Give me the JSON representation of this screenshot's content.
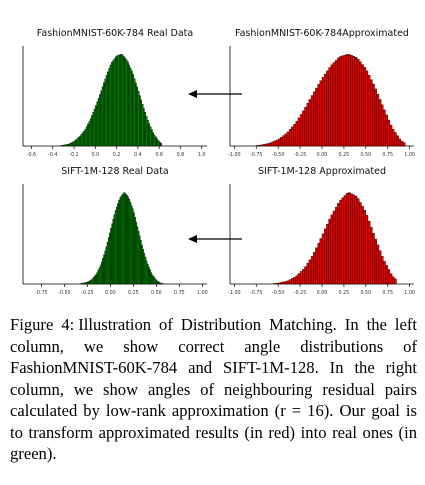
{
  "chart_data": [
    {
      "type": "bar",
      "title": "FashionMNIST-60K-784 Real Data",
      "color": "#008000",
      "x_ticks": [
        -0.6,
        -0.4,
        -0.2,
        0.0,
        0.2,
        0.4,
        0.6,
        0.8,
        1.0
      ],
      "x_tick_labels": [
        "-0.6",
        "-0.4",
        "-0.2",
        "0.0",
        "0.2",
        "0.4",
        "0.6",
        "0.8",
        "1.0"
      ],
      "xlim": [
        -0.68,
        1.05
      ],
      "x": [
        -0.3,
        -0.25,
        -0.2,
        -0.15,
        -0.1,
        -0.05,
        0.0,
        0.05,
        0.1,
        0.15,
        0.2,
        0.25,
        0.3,
        0.35,
        0.4,
        0.45,
        0.5,
        0.55,
        0.6
      ],
      "values": [
        0.01,
        0.02,
        0.05,
        0.1,
        0.17,
        0.28,
        0.42,
        0.58,
        0.75,
        0.9,
        0.98,
        1.0,
        0.93,
        0.8,
        0.62,
        0.43,
        0.26,
        0.13,
        0.05
      ]
    },
    {
      "type": "bar",
      "title": "FashionMNIST-60K-784Approximated",
      "color": "#e00000",
      "x_ticks": [
        -1.0,
        -0.75,
        -0.5,
        -0.25,
        0.0,
        0.25,
        0.5,
        0.75,
        1.0
      ],
      "x_tick_labels": [
        "-1.00",
        "-0.75",
        "-0.50",
        "-0.25",
        "0.00",
        "0.25",
        "0.50",
        "0.75",
        "1.00"
      ],
      "xlim": [
        -1.05,
        1.05
      ],
      "x": [
        -0.7,
        -0.6,
        -0.5,
        -0.4,
        -0.3,
        -0.2,
        -0.1,
        0.0,
        0.1,
        0.2,
        0.3,
        0.4,
        0.5,
        0.6,
        0.7,
        0.8,
        0.9
      ],
      "values": [
        0.01,
        0.03,
        0.07,
        0.14,
        0.25,
        0.4,
        0.57,
        0.73,
        0.87,
        0.97,
        1.0,
        0.96,
        0.84,
        0.65,
        0.42,
        0.2,
        0.06
      ]
    },
    {
      "type": "bar",
      "title": "SIFT-1M-128 Real Data",
      "color": "#008000",
      "x_ticks": [
        -0.75,
        -0.5,
        -0.25,
        0.0,
        0.25,
        0.5,
        0.75,
        1.0
      ],
      "x_tick_labels": [
        "-0.75",
        "-0.50",
        "-0.25",
        "0.00",
        "0.25",
        "0.50",
        "0.75",
        "1.00"
      ],
      "xlim": [
        -0.95,
        1.05
      ],
      "x": [
        -0.3,
        -0.25,
        -0.2,
        -0.15,
        -0.1,
        -0.05,
        0.0,
        0.05,
        0.1,
        0.15,
        0.2,
        0.25,
        0.3,
        0.35,
        0.4,
        0.45,
        0.5,
        0.55
      ],
      "values": [
        0.01,
        0.02,
        0.05,
        0.11,
        0.22,
        0.38,
        0.58,
        0.78,
        0.93,
        1.0,
        0.94,
        0.8,
        0.6,
        0.4,
        0.23,
        0.11,
        0.04,
        0.01
      ]
    },
    {
      "type": "bar",
      "title": "SIFT-1M-128 Approximated",
      "color": "#e00000",
      "x_ticks": [
        -1.0,
        -0.75,
        -0.5,
        -0.25,
        0.0,
        0.25,
        0.5,
        0.75,
        1.0
      ],
      "x_tick_labels": [
        "-1.00",
        "-0.75",
        "-0.50",
        "-0.25",
        "0.00",
        "0.25",
        "0.50",
        "0.75",
        "1.00"
      ],
      "xlim": [
        -1.05,
        1.05
      ],
      "x": [
        -0.5,
        -0.4,
        -0.3,
        -0.2,
        -0.1,
        0.0,
        0.1,
        0.2,
        0.3,
        0.4,
        0.5,
        0.6,
        0.7,
        0.8
      ],
      "values": [
        0.01,
        0.03,
        0.08,
        0.17,
        0.32,
        0.52,
        0.73,
        0.9,
        1.0,
        0.95,
        0.78,
        0.52,
        0.27,
        0.09
      ]
    }
  ],
  "caption": {
    "label": "Figure 4:",
    "text": "Illustration of Distribution Matching. In the left column, we show correct angle distributions of FashionMNIST-60K-784 and SIFT-1M-128. In the right column, we show angles of neighbouring residual pairs calculated by low-rank approximation (r = 16). Our goal is to transform approximated results (in red) into real ones (in green)."
  }
}
